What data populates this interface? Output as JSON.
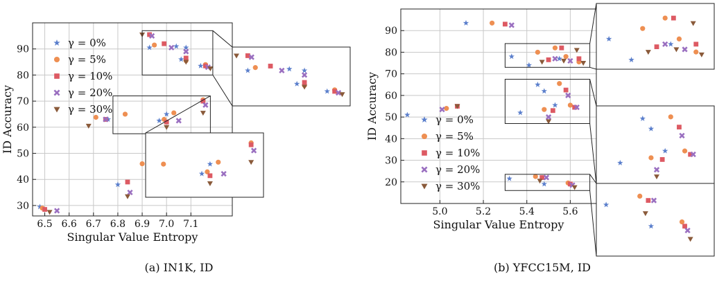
{
  "captions": {
    "a": "(a) IN1K, ID",
    "b": "(b) YFCC15M, ID"
  },
  "legend": [
    {
      "label": "γ = 0%",
      "marker": "star",
      "color": "#5b7fcc"
    },
    {
      "label": "γ = 5%",
      "marker": "circle",
      "color": "#ee8f52"
    },
    {
      "label": "γ = 10%",
      "marker": "square",
      "color": "#dd5a63"
    },
    {
      "label": "γ = 20%",
      "marker": "x",
      "color": "#9a6fc0"
    },
    {
      "label": "γ = 30%",
      "marker": "tri",
      "color": "#8a5a3a"
    }
  ],
  "chart_data": [
    {
      "type": "scatter",
      "xlabel": "Singular Value Entropy",
      "ylabel": "ID Accuracy",
      "xlim": [
        6.45,
        7.27
      ],
      "ylim": [
        26,
        100
      ],
      "xticks": [
        6.5,
        6.6,
        6.7,
        6.8,
        6.9,
        7.0,
        7.1
      ],
      "yticks": [
        30,
        40,
        50,
        60,
        70,
        80,
        90
      ],
      "grid": true,
      "legend_position": "upper-left",
      "series": [
        {
          "name": "γ = 0%",
          "points": [
            [
              6.48,
              29.5
            ],
            [
              6.76,
              63.0
            ],
            [
              6.8,
              38.0
            ],
            [
              6.93,
              90.5
            ],
            [
              6.97,
              62.5
            ],
            [
              7.0,
              65.0
            ],
            [
              7.04,
              91.0
            ],
            [
              7.06,
              86.0
            ],
            [
              7.08,
              90.5
            ],
            [
              7.09,
              41.0
            ],
            [
              7.13,
              45.5
            ],
            [
              7.14,
              83.5
            ]
          ]
        },
        {
          "name": "γ = 5%",
          "points": [
            [
              6.49,
              29.0
            ],
            [
              6.71,
              63.8
            ],
            [
              6.83,
              65.0
            ],
            [
              6.9,
              46.0
            ],
            [
              6.95,
              91.5
            ],
            [
              6.99,
              63.0
            ],
            [
              7.03,
              65.5
            ],
            [
              7.08,
              85.5
            ],
            [
              7.09,
              42.0
            ],
            [
              7.12,
              47.0
            ],
            [
              7.15,
              70.5
            ],
            [
              7.16,
              84.0
            ]
          ]
        },
        {
          "name": "γ = 10%",
          "points": [
            [
              6.5,
              28.5
            ],
            [
              6.75,
              63.0
            ],
            [
              6.84,
              39.0
            ],
            [
              6.93,
              95.5
            ],
            [
              6.95,
              44.0
            ],
            [
              6.99,
              92.0
            ],
            [
              7.0,
              62.0
            ],
            [
              7.08,
              86.5
            ],
            [
              7.12,
              39.5
            ],
            [
              7.13,
              45.0
            ],
            [
              7.15,
              70.0
            ],
            [
              7.16,
              83.5
            ]
          ]
        },
        {
          "name": "γ = 20%",
          "points": [
            [
              6.55,
              28.0
            ],
            [
              6.75,
              63.0
            ],
            [
              6.85,
              35.0
            ],
            [
              6.94,
              95.0
            ],
            [
              6.97,
              42.0
            ],
            [
              7.02,
              90.5
            ],
            [
              7.05,
              62.5
            ],
            [
              7.08,
              89.0
            ],
            [
              7.12,
              39.0
            ],
            [
              7.14,
              43.5
            ],
            [
              7.16,
              68.5
            ],
            [
              7.17,
              83.0
            ]
          ]
        },
        {
          "name": "γ = 30%",
          "points": [
            [
              6.52,
              27.5
            ],
            [
              6.68,
              60.5
            ],
            [
              6.84,
              33.5
            ],
            [
              6.9,
              95.5
            ],
            [
              6.96,
              43.0
            ],
            [
              7.0,
              60.0
            ],
            [
              7.08,
              85.0
            ],
            [
              7.1,
              36.5
            ],
            [
              7.15,
              40.0
            ],
            [
              7.15,
              65.5
            ],
            [
              7.18,
              82.5
            ]
          ]
        }
      ],
      "zoom_regions": [
        {
          "xlim": [
            6.9,
            7.19
          ],
          "ylim": [
            80,
            97
          ]
        },
        {
          "xlim": [
            6.78,
            7.18
          ],
          "ylim": [
            57.5,
            72
          ]
        }
      ]
    },
    {
      "type": "scatter",
      "xlabel": "Singular Value Entropy",
      "ylabel": "ID Accuracy",
      "xlim": [
        4.82,
        5.72
      ],
      "ylim": [
        10,
        100
      ],
      "xticks": [
        5.0,
        5.2,
        5.4,
        5.6
      ],
      "yticks": [
        20,
        30,
        40,
        50,
        60,
        70,
        80,
        90
      ],
      "grid": true,
      "legend_position": "lower-left",
      "series": [
        {
          "name": "γ = 0%",
          "points": [
            [
              4.85,
              51.0
            ],
            [
              5.12,
              93.5
            ],
            [
              5.32,
              21.5
            ],
            [
              5.33,
              78.0
            ],
            [
              5.37,
              52.0
            ],
            [
              5.41,
              74.0
            ],
            [
              5.45,
              65.0
            ],
            [
              5.48,
              19.0
            ],
            [
              5.48,
              62.0
            ],
            [
              5.53,
              55.5
            ],
            [
              5.55,
              77.0
            ]
          ]
        },
        {
          "name": "γ = 5%",
          "points": [
            [
              5.03,
              54.0
            ],
            [
              5.24,
              93.5
            ],
            [
              5.44,
              22.5
            ],
            [
              5.45,
              80.0
            ],
            [
              5.48,
              53.5
            ],
            [
              5.53,
              82.0
            ],
            [
              5.55,
              65.5
            ],
            [
              5.58,
              78.0
            ],
            [
              5.59,
              19.5
            ],
            [
              5.6,
              55.5
            ],
            [
              5.64,
              75.5
            ]
          ]
        },
        {
          "name": "γ = 10%",
          "points": [
            [
              5.08,
              55.0
            ],
            [
              5.3,
              93.0
            ],
            [
              5.47,
              22.0
            ],
            [
              5.5,
              76.5
            ],
            [
              5.52,
              53.0
            ],
            [
              5.56,
              82.0
            ],
            [
              5.58,
              62.5
            ],
            [
              5.6,
              19.0
            ],
            [
              5.62,
              54.5
            ],
            [
              5.64,
              77.0
            ]
          ]
        },
        {
          "name": "γ = 20%",
          "points": [
            [
              5.01,
              53.5
            ],
            [
              5.33,
              92.5
            ],
            [
              5.49,
              22.0
            ],
            [
              5.5,
              50.0
            ],
            [
              5.53,
              77.0
            ],
            [
              5.59,
              60.0
            ],
            [
              5.6,
              76.0
            ],
            [
              5.61,
              18.5
            ],
            [
              5.63,
              54.5
            ]
          ]
        },
        {
          "name": "γ = 30%",
          "points": [
            [
              5.08,
              55.0
            ],
            [
              5.46,
              20.5
            ],
            [
              5.47,
              75.5
            ],
            [
              5.5,
              48.0
            ],
            [
              5.57,
              76.0
            ],
            [
              5.62,
              17.5
            ],
            [
              5.63,
              81.0
            ],
            [
              5.66,
              75.0
            ]
          ]
        }
      ],
      "zoom_regions": [
        {
          "xlim": [
            5.3,
            5.69
          ],
          "ylim": [
            73,
            84
          ]
        },
        {
          "xlim": [
            5.3,
            5.69
          ],
          "ylim": [
            47,
            67.5
          ]
        },
        {
          "xlim": [
            5.3,
            5.69
          ],
          "ylim": [
            16,
            23.5
          ]
        }
      ]
    }
  ]
}
